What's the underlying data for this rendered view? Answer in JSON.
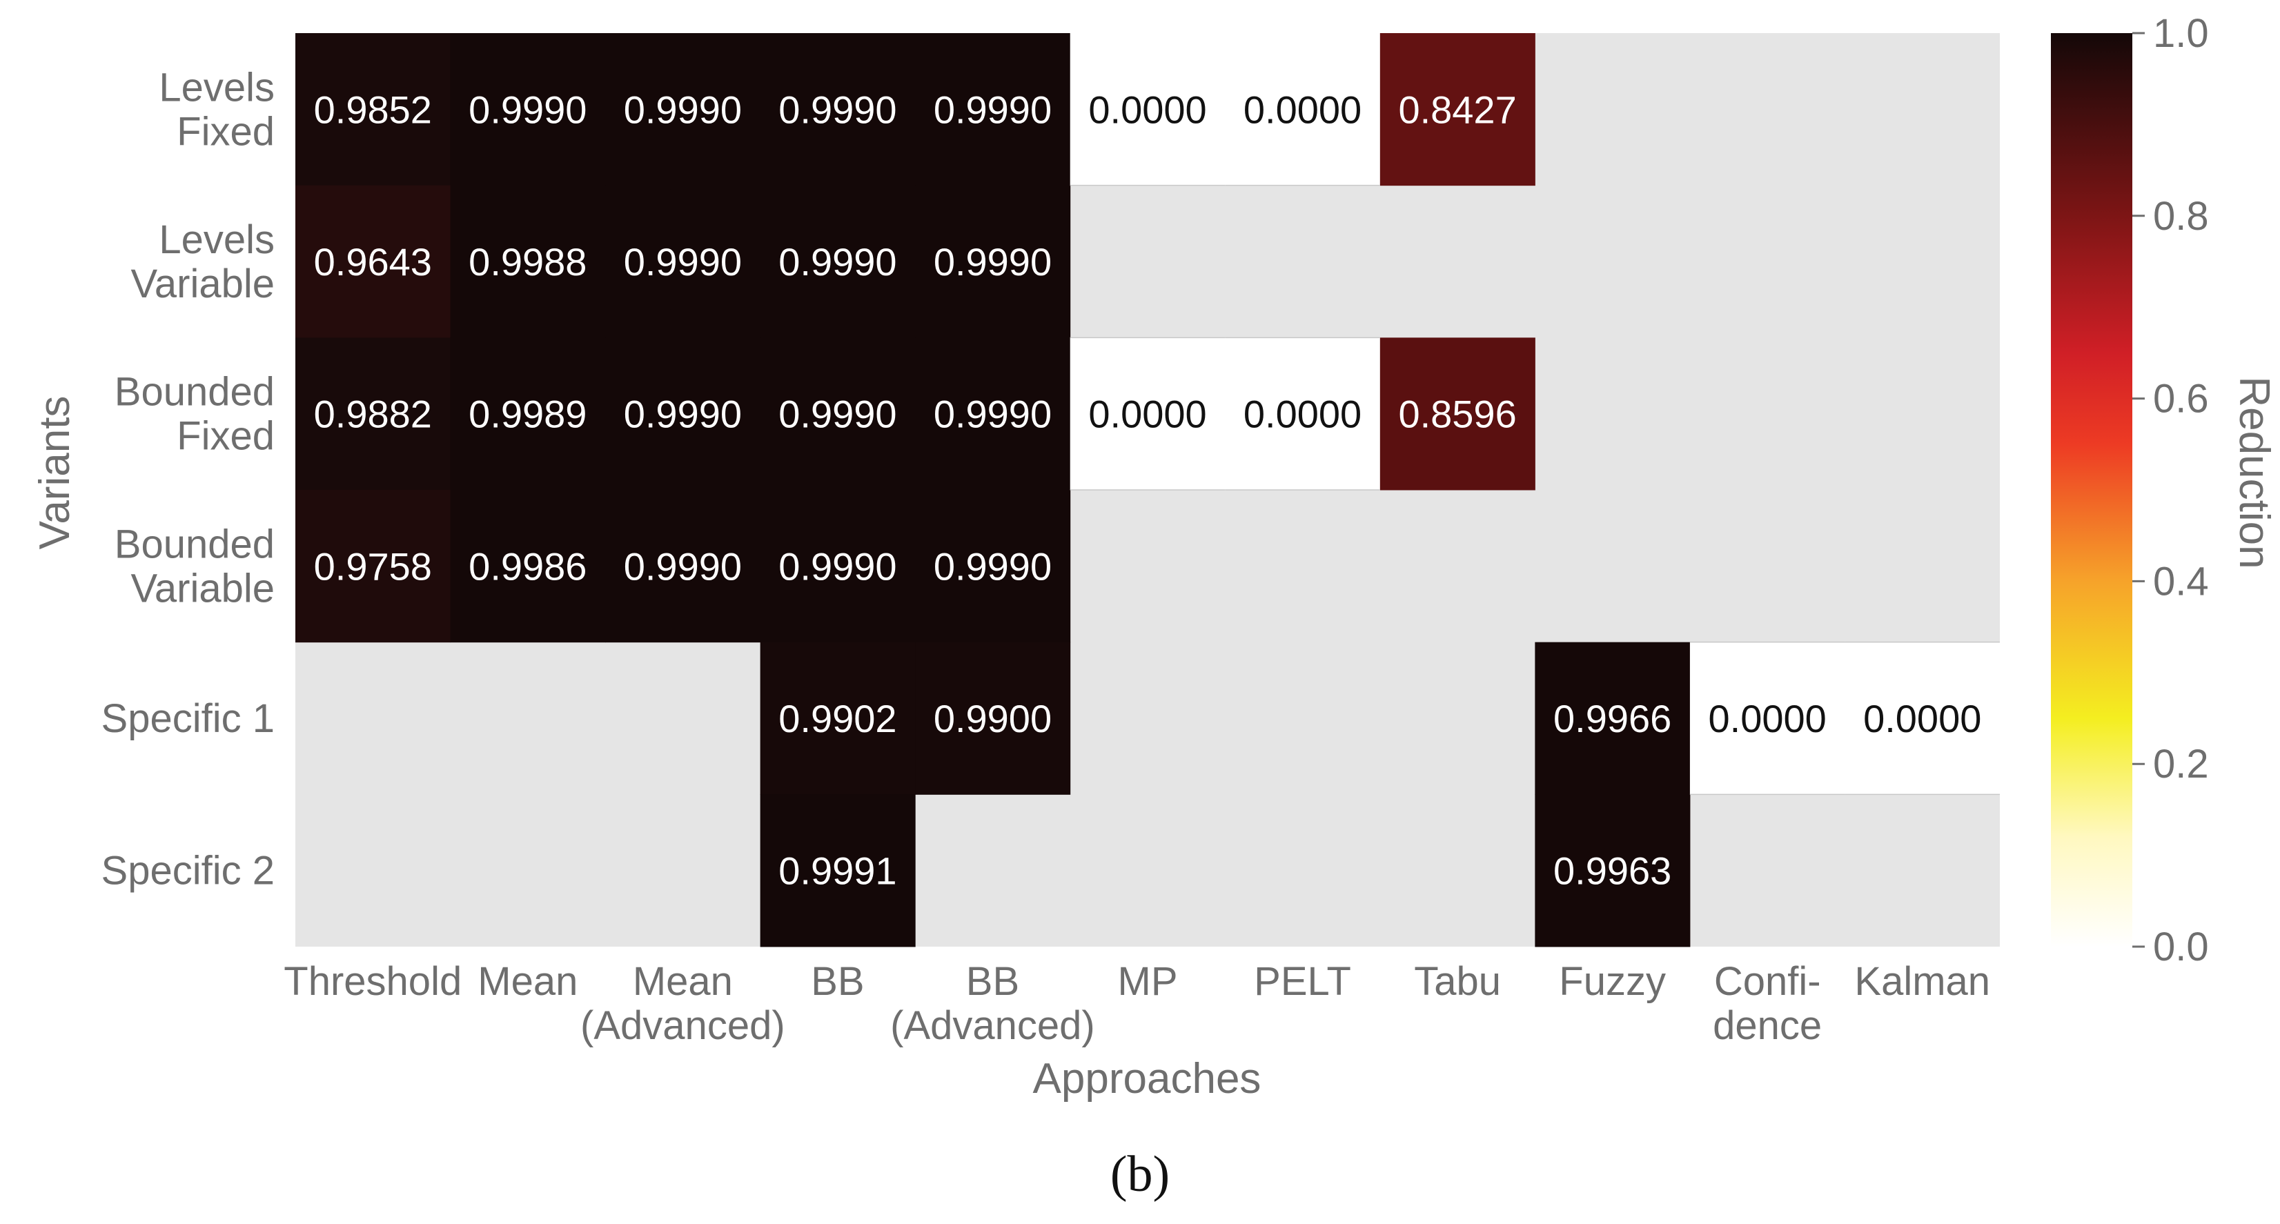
{
  "panel_label": "(b)",
  "chart_data": {
    "type": "heatmap",
    "xlabel": "Approaches",
    "ylabel": "Variants",
    "x_categories": [
      [
        "Threshold"
      ],
      [
        "Mean"
      ],
      [
        "Mean",
        "(Advanced)"
      ],
      [
        "BB"
      ],
      [
        "BB",
        "(Advanced)"
      ],
      [
        "MP"
      ],
      [
        "PELT"
      ],
      [
        "Tabu"
      ],
      [
        "Fuzzy"
      ],
      [
        "Confi-",
        "dence"
      ],
      [
        "Kalman"
      ]
    ],
    "y_categories": [
      [
        "Levels",
        "Fixed"
      ],
      [
        "Levels",
        "Variable"
      ],
      [
        "Bounded",
        "Fixed"
      ],
      [
        "Bounded",
        "Variable"
      ],
      [
        "Specific 1"
      ],
      [
        "Specific 2"
      ]
    ],
    "values": [
      [
        0.9852,
        0.999,
        0.999,
        0.999,
        0.999,
        0.0,
        0.0,
        0.8427,
        null,
        null,
        null
      ],
      [
        0.9643,
        0.9988,
        0.999,
        0.999,
        0.999,
        null,
        null,
        null,
        null,
        null,
        null
      ],
      [
        0.9882,
        0.9989,
        0.999,
        0.999,
        0.999,
        0.0,
        0.0,
        0.8596,
        null,
        null,
        null
      ],
      [
        0.9758,
        0.9986,
        0.999,
        0.999,
        0.999,
        null,
        null,
        null,
        null,
        null,
        null
      ],
      [
        null,
        null,
        null,
        0.9902,
        0.99,
        null,
        null,
        null,
        0.9966,
        0.0,
        0.0
      ],
      [
        null,
        null,
        null,
        0.9991,
        null,
        null,
        null,
        null,
        0.9963,
        null,
        null
      ]
    ],
    "value_format": "4 decimals",
    "missing_color": "#e5e5e5",
    "colormap": "hot_r",
    "colorbar": {
      "label": "Reduction",
      "range": [
        0.0,
        1.0
      ],
      "ticks": [
        "0.0",
        "0.2",
        "0.4",
        "0.6",
        "0.8",
        "1.0"
      ]
    },
    "grid": false
  }
}
